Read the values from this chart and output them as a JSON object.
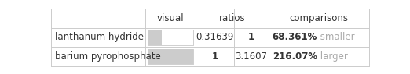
{
  "rows": [
    {
      "name": "lanthanum hydride",
      "ratio1": "0.31639",
      "ratio2": "1",
      "comparison_value": "68.361%",
      "comparison_text": " smaller",
      "bar_fill_ratio": 0.31639,
      "bar_color": "#cccccc",
      "ratio1_bold": false,
      "ratio2_bold": true
    },
    {
      "name": "barium pyrophosphate",
      "ratio1": "1",
      "ratio2": "3.1607",
      "comparison_value": "216.07%",
      "comparison_text": " larger",
      "bar_fill_ratio": 1.0,
      "bar_color": "#cccccc",
      "ratio1_bold": true,
      "ratio2_bold": false
    }
  ],
  "header_labels": [
    "visual",
    "ratios",
    "comparisons"
  ],
  "background_color": "#ffffff",
  "text_color": "#333333",
  "comparison_word_color": "#aaaaaa",
  "grid_color": "#cccccc",
  "font_size": 8.5,
  "col_borders": [
    0.0,
    0.295,
    0.455,
    0.575,
    0.685,
    1.0
  ],
  "row_borders": [
    0.0,
    0.333,
    0.667,
    1.0
  ]
}
